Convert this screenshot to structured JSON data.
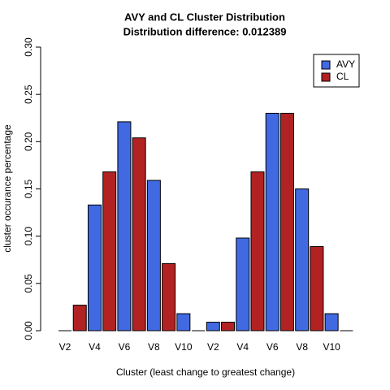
{
  "chart_data": {
    "type": "bar",
    "title": "AVY and CL Cluster Distribution",
    "subtitle": "Distribution difference: 0.012389",
    "x_label": "Cluster (least change to greatest change)",
    "y_label": "cluster occurance percentage",
    "categories": [
      "V2",
      null,
      "V4",
      null,
      "V6",
      null,
      "V8",
      null,
      "V10",
      null,
      "V2",
      null,
      "V4",
      null,
      "V6",
      null,
      "V8",
      null,
      "V10",
      null
    ],
    "values": [
      0,
      0.027,
      0.133,
      0.168,
      0.221,
      0.204,
      0.159,
      0.071,
      0.018,
      0,
      0.009,
      0.009,
      0.098,
      0.168,
      0.23,
      0.23,
      0.15,
      0.089,
      0.018,
      0
    ],
    "colors": [
      "#4169e1",
      "#b22222",
      "#4169e1",
      "#b22222",
      "#4169e1",
      "#b22222",
      "#4169e1",
      "#b22222",
      "#4169e1",
      "#b22222",
      "#4169e1",
      "#b22222",
      "#4169e1",
      "#b22222",
      "#4169e1",
      "#b22222",
      "#4169e1",
      "#b22222",
      "#4169e1",
      "#b22222"
    ],
    "legend": [
      {
        "name": "AVY",
        "color": "#4169e1"
      },
      {
        "name": "CL",
        "color": "#b22222"
      }
    ],
    "legend_position": "topright",
    "ylim": [
      0,
      0.3
    ],
    "yticks": [
      {
        "value": 0,
        "label": "0.00"
      },
      {
        "value": 0.05,
        "label": "0.05"
      },
      {
        "value": 0.1,
        "label": "0.10"
      },
      {
        "value": 0.15,
        "label": "0.15"
      },
      {
        "value": 0.2,
        "label": "0.20"
      },
      {
        "value": 0.25,
        "label": "0.25"
      },
      {
        "value": 0.3,
        "label": "0.30"
      }
    ]
  }
}
